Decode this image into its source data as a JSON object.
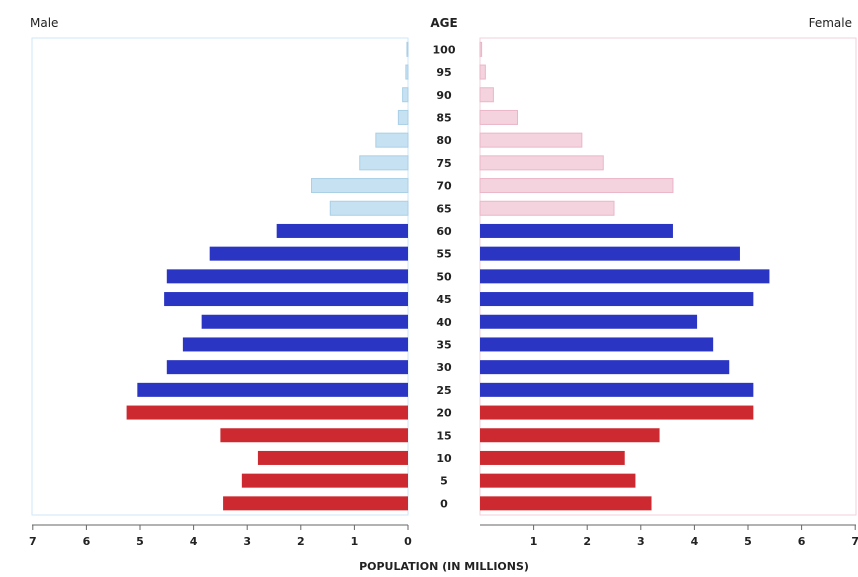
{
  "chart_data": {
    "type": "bar",
    "orientation": "horizontal",
    "title": "",
    "left_label": "Male",
    "right_label": "Female",
    "center_header": "AGE",
    "xlabel": "POPULATION (IN MILLIONS)",
    "xlim": [
      0,
      7
    ],
    "x_ticks": [
      "7",
      "6",
      "5",
      "4",
      "3",
      "2",
      "1",
      "0",
      "1",
      "2",
      "3",
      "4",
      "5",
      "6",
      "7"
    ],
    "age_groups": [
      "100",
      "95",
      "90",
      "85",
      "80",
      "75",
      "70",
      "65",
      "60",
      "55",
      "50",
      "45",
      "40",
      "35",
      "30",
      "25",
      "20",
      "15",
      "10",
      "5",
      "0"
    ],
    "series": [
      {
        "name": "Male",
        "values": [
          0.02,
          0.04,
          0.1,
          0.18,
          0.6,
          0.9,
          1.8,
          1.45,
          2.45,
          3.7,
          4.5,
          4.55,
          3.85,
          4.2,
          4.5,
          5.05,
          5.25,
          3.5,
          2.8,
          3.1,
          3.45
        ]
      },
      {
        "name": "Female",
        "values": [
          0.03,
          0.1,
          0.25,
          0.7,
          1.9,
          2.3,
          3.6,
          2.5,
          3.6,
          4.85,
          5.4,
          5.1,
          4.05,
          4.35,
          4.65,
          5.1,
          5.1,
          3.35,
          2.7,
          2.9,
          3.2
        ]
      }
    ],
    "colors": {
      "old_male": "#c6e2f2",
      "old_female": "#f4d2de",
      "working": "#2a35c4",
      "young": "#cc2a30",
      "frame_left": "#cfe7f5",
      "frame_right": "#f2d0dc"
    }
  }
}
